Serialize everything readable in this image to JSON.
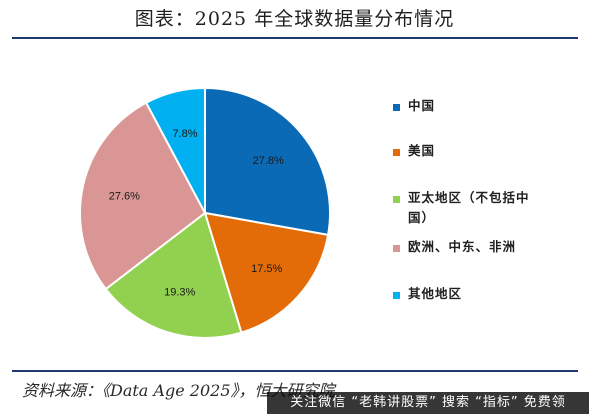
{
  "title": "图表：2025 年全球数据量分布情况",
  "source": "资料来源：《Data Age 2025》，恒大研究院",
  "watermark": "关注微信 “老韩讲股票” 搜索 “指标” 免费领",
  "chart_data": {
    "type": "pie",
    "title": "图表：2025 年全球数据量分布情况",
    "legend_position": "right",
    "start_angle": "12 o'clock, clockwise",
    "slices": [
      {
        "label": "中国",
        "value": 27.8,
        "value_label": "27.8%",
        "color": "#0b6ab5"
      },
      {
        "label": "美国",
        "value": 17.5,
        "value_label": "17.5%",
        "color": "#e36c09"
      },
      {
        "label": "亚太地区（不包括中国）",
        "value": 19.3,
        "value_label": "19.3%",
        "color": "#92d050"
      },
      {
        "label": "欧洲、中东、非洲",
        "value": 27.6,
        "value_label": "27.6%",
        "color": "#d99694"
      },
      {
        "label": "其他地区",
        "value": 7.8,
        "value_label": "7.8%",
        "color": "#00b0f0"
      }
    ]
  }
}
